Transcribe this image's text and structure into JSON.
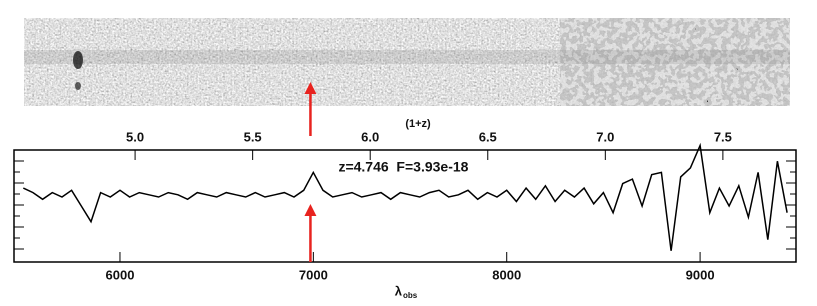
{
  "chart_data": {
    "type": "line",
    "annotation": {
      "text": "z=4.746  F=3.93e-18",
      "x": 6985,
      "color": "#e8231f"
    },
    "xlabel": "λ",
    "xlabel_subscript": "obs",
    "x2label": "(1+z)",
    "xlim": [
      5452,
      9496
    ],
    "xticks": [
      6000,
      7000,
      8000,
      9000
    ],
    "x2lim": [
      4.485,
      7.811
    ],
    "x2ticks": [
      {
        "value": 5,
        "label": "5.0"
      },
      {
        "value": 5.5,
        "label": "5.5"
      },
      {
        "value": 6,
        "label": "6.0"
      },
      {
        "value": 6.5,
        "label": "6.5"
      },
      {
        "value": 7,
        "label": "7.0"
      },
      {
        "value": 7.5,
        "label": "7.5"
      }
    ],
    "ylim": [
      -3,
      2
    ],
    "series": [
      {
        "color": "#000000",
        "x": [
          5500,
          5550,
          5600,
          5650,
          5700,
          5750,
          5800,
          5850,
          5900,
          5950,
          6000,
          6050,
          6100,
          6150,
          6200,
          6250,
          6300,
          6350,
          6400,
          6450,
          6500,
          6550,
          6600,
          6650,
          6700,
          6750,
          6800,
          6850,
          6900,
          6950,
          7000,
          7050,
          7100,
          7150,
          7200,
          7250,
          7300,
          7350,
          7400,
          7450,
          7500,
          7550,
          7600,
          7650,
          7700,
          7750,
          7800,
          7850,
          7900,
          7950,
          8000,
          8050,
          8100,
          8150,
          8200,
          8250,
          8300,
          8350,
          8400,
          8450,
          8500,
          8550,
          8600,
          8650,
          8700,
          8750,
          8800,
          8850,
          8900,
          8950,
          9000,
          9050,
          9100,
          9150,
          9200,
          9250,
          9300,
          9350,
          9400,
          9450
        ],
        "values": [
          0.3,
          0.1,
          -0.2,
          0.1,
          -0.1,
          0.2,
          -0.5,
          -1.2,
          0.1,
          -0.1,
          0.2,
          -0.1,
          0.1,
          0.0,
          -0.1,
          0.1,
          0.0,
          -0.2,
          0.1,
          0.0,
          -0.1,
          0.1,
          0.0,
          -0.1,
          0.1,
          -0.1,
          0.0,
          0.1,
          -0.1,
          0.2,
          1.0,
          0.2,
          -0.1,
          0.0,
          0.1,
          -0.1,
          0.0,
          0.1,
          -0.2,
          0.1,
          0.0,
          -0.1,
          0.1,
          0.2,
          -0.1,
          0.0,
          0.2,
          -0.2,
          0.1,
          -0.1,
          0.2,
          -0.3,
          0.3,
          -0.2,
          0.4,
          -0.3,
          0.2,
          -0.1,
          0.3,
          -0.4,
          0.1,
          -0.8,
          0.5,
          0.7,
          -0.5,
          0.9,
          1.0,
          -2.5,
          0.8,
          1.2,
          2.2,
          -0.8,
          0.3,
          -0.5,
          0.4,
          -1.0,
          1.0,
          -2.0,
          1.5,
          -0.8
        ]
      }
    ]
  }
}
